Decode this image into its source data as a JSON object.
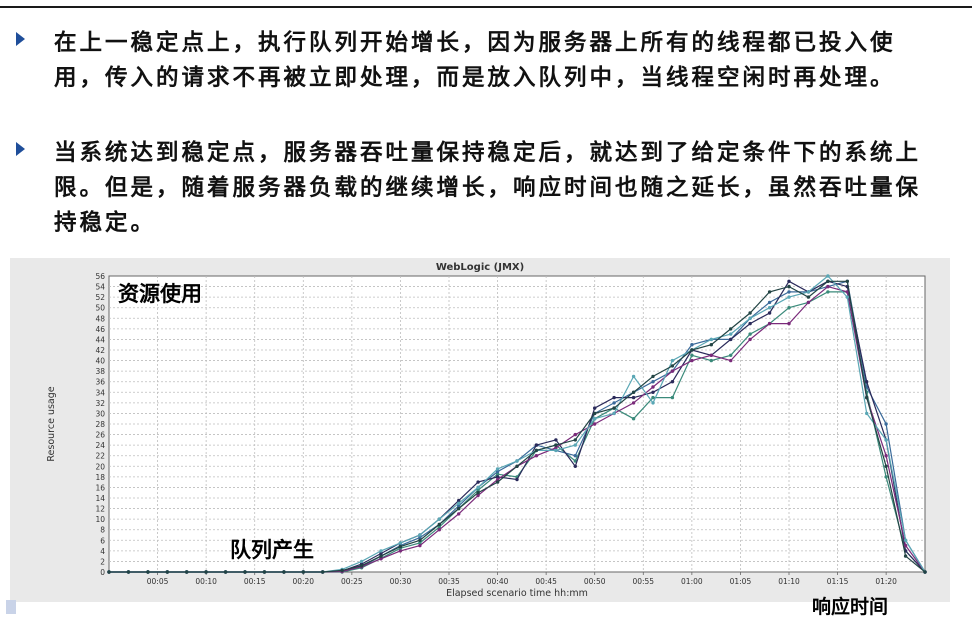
{
  "bullets": [
    {
      "text": "在上一稳定点上，执行队列开始增长，因为服务器上所有的线程都已投入使用，传入的请求不再被立即处理，而是放入队列中，当线程空闲时再处理。"
    },
    {
      "text": "当系统达到稳定点，服务器吞吐量保持稳定后，就达到了给定条件下的系统上限。但是，随着服务器负载的继续增长，响应时间也随之延长，虽然吞吐量保持稳定。"
    }
  ],
  "annotations": {
    "resource_use": "资源使用",
    "queue_forms": "队列产生",
    "response_time": "响应时间"
  },
  "colors": {
    "bullet_arrow": "#1f4e9a",
    "chart_background": "#e9e9e9",
    "plot_background": "#ffffff",
    "series": [
      "#3a8a7a",
      "#3a6a9a",
      "#2a2a5a",
      "#7a2a7a",
      "#5aa7b5",
      "#224444"
    ]
  },
  "chart_data": {
    "type": "line",
    "title": "WebLogic (JMX)",
    "xlabel": "Elapsed scenario time hh:mm",
    "ylabel": "Resource usage",
    "xlim": [
      0,
      84
    ],
    "ylim": [
      0,
      56
    ],
    "grid": true,
    "x_ticks": [
      "00:05",
      "00:10",
      "00:15",
      "00:20",
      "00:25",
      "00:30",
      "00:35",
      "00:40",
      "00:45",
      "00:50",
      "00:55",
      "01:00",
      "01:05",
      "01:10",
      "01:15",
      "01:20"
    ],
    "y_ticks": [
      0,
      2,
      4,
      6,
      8,
      10,
      12,
      14,
      16,
      18,
      20,
      22,
      24,
      26,
      28,
      30,
      32,
      34,
      36,
      38,
      40,
      42,
      44,
      46,
      48,
      50,
      52,
      54,
      56
    ],
    "x_minutes": [
      0,
      2,
      4,
      6,
      8,
      10,
      12,
      14,
      16,
      18,
      20,
      22,
      24,
      26,
      28,
      30,
      32,
      34,
      36,
      38,
      40,
      42,
      44,
      46,
      48,
      50,
      52,
      54,
      56,
      58,
      60,
      62,
      64,
      66,
      68,
      70,
      72,
      74,
      76,
      78,
      80,
      82,
      84
    ],
    "series": [
      {
        "values": [
          0,
          0,
          0,
          0,
          0,
          0,
          0,
          0,
          0,
          0,
          0,
          0,
          0,
          0.8,
          2.6,
          4.5,
          5.5,
          8.5,
          12,
          15.5,
          18.5,
          18,
          23,
          24,
          21,
          29,
          31,
          29,
          33,
          33,
          41,
          40,
          41,
          45,
          47,
          50,
          51,
          53,
          53,
          34,
          18,
          4,
          0
        ]
      },
      {
        "values": [
          0,
          0,
          0,
          0,
          0,
          0,
          0,
          0,
          0,
          0,
          0,
          0,
          0.2,
          1,
          3,
          5,
          6.5,
          9,
          12.5,
          16,
          19,
          21,
          24,
          23,
          22,
          30,
          32,
          34,
          36,
          38,
          43,
          44,
          44,
          48,
          51,
          53,
          53,
          54,
          55,
          35,
          28,
          6,
          0
        ]
      },
      {
        "values": [
          0,
          0,
          0,
          0,
          0,
          0,
          0,
          0,
          0,
          0,
          0,
          0,
          0.2,
          1.5,
          3.5,
          5.5,
          7,
          10,
          13.5,
          17,
          18,
          17.5,
          24,
          25,
          20,
          31,
          33,
          33,
          34,
          36,
          42,
          41,
          44,
          47,
          49,
          55,
          53,
          55,
          54,
          36,
          25,
          4,
          0
        ]
      },
      {
        "values": [
          0,
          0,
          0,
          0,
          0,
          0,
          0,
          0,
          0,
          0,
          0,
          0,
          0.1,
          1,
          2.5,
          4,
          5,
          8,
          11,
          14.5,
          17.5,
          20,
          22,
          23.5,
          26,
          28,
          30,
          32,
          35,
          38,
          40,
          41,
          40,
          44,
          47,
          47,
          51,
          54,
          53,
          33,
          22,
          5,
          0
        ]
      },
      {
        "values": [
          0,
          0,
          0,
          0,
          0,
          0,
          0,
          0,
          0,
          0,
          0,
          0,
          0.5,
          2,
          4,
          5.5,
          7,
          10,
          13,
          16,
          19.5,
          21,
          23,
          23,
          24,
          29,
          30,
          37,
          32,
          40,
          42,
          44,
          45,
          48,
          50,
          52,
          53,
          56,
          52,
          30,
          25,
          6,
          0
        ]
      },
      {
        "values": [
          0,
          0,
          0,
          0,
          0,
          0,
          0,
          0,
          0,
          0,
          0,
          0,
          0.3,
          1.2,
          3,
          4.8,
          6,
          9,
          12,
          15,
          17,
          20,
          23,
          24,
          25,
          30,
          31,
          34,
          37,
          39,
          42,
          43,
          46,
          49,
          53,
          54,
          52,
          55,
          55,
          33,
          20,
          3,
          0
        ]
      }
    ]
  }
}
